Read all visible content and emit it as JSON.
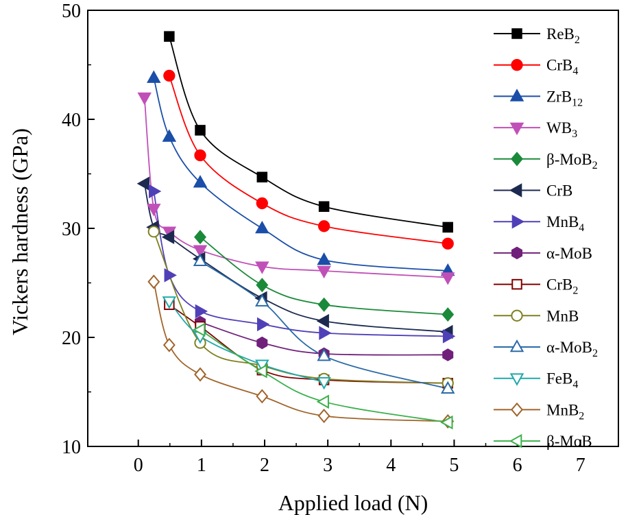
{
  "chart_data": {
    "type": "line",
    "title": "",
    "xlabel": "Applied load (N)",
    "ylabel": "Vickers hardness (GPa)",
    "xlim": [
      -0.8,
      7.6
    ],
    "ylim": [
      10,
      50
    ],
    "xticks": [
      0,
      1,
      2,
      3,
      4,
      5,
      6,
      7
    ],
    "yticks": [
      10,
      20,
      30,
      40,
      50
    ],
    "grid": false,
    "legend_position": "right",
    "series": [
      {
        "name": "ReB2",
        "name_base": "ReB",
        "name_sub": "2",
        "color": "#000000",
        "marker": "square",
        "filled": true,
        "x": [
          0.49,
          0.98,
          1.96,
          2.94,
          4.9
        ],
        "y": [
          47.6,
          39.0,
          34.7,
          32.0,
          30.1
        ]
      },
      {
        "name": "CrB4",
        "name_base": "CrB",
        "name_sub": "4",
        "color": "#ff0000",
        "marker": "circle",
        "filled": true,
        "x": [
          0.49,
          0.98,
          1.96,
          2.94,
          4.9
        ],
        "y": [
          44.0,
          36.7,
          32.3,
          30.2,
          28.6
        ]
      },
      {
        "name": "ZrB12",
        "name_base": "ZrB",
        "name_sub": "12",
        "color": "#1a4ea8",
        "marker": "triangle-up",
        "filled": true,
        "x": [
          0.245,
          0.49,
          0.98,
          1.96,
          2.94,
          4.9
        ],
        "y": [
          43.8,
          38.4,
          34.2,
          30.0,
          27.1,
          26.1
        ]
      },
      {
        "name": "WB3",
        "name_base": "WB",
        "name_sub": "3",
        "color": "#c050b8",
        "marker": "triangle-down",
        "filled": true,
        "x": [
          0.098,
          0.245,
          0.49,
          0.98,
          1.96,
          2.94,
          4.9
        ],
        "y": [
          42.0,
          31.8,
          29.7,
          28.0,
          26.5,
          26.1,
          25.5
        ]
      },
      {
        "name": "β-MoB2",
        "name_base": "β-MoB",
        "name_sub": "2",
        "color": "#1a8a3a",
        "marker": "diamond",
        "filled": true,
        "x": [
          0.98,
          1.96,
          2.94,
          4.9
        ],
        "y": [
          29.2,
          24.8,
          23.0,
          22.1
        ]
      },
      {
        "name": "CrB",
        "name_base": "CrB",
        "name_sub": "",
        "color": "#1c2a50",
        "marker": "triangle-left",
        "filled": true,
        "x": [
          0.098,
          0.245,
          0.49,
          0.98,
          1.96,
          2.94,
          4.9
        ],
        "y": [
          34.1,
          30.1,
          29.2,
          27.2,
          23.6,
          21.5,
          20.5
        ]
      },
      {
        "name": "MnB4",
        "name_base": "MnB",
        "name_sub": "4",
        "color": "#5040b8",
        "marker": "triangle-right",
        "filled": true,
        "x": [
          0.245,
          0.49,
          0.98,
          1.96,
          2.94,
          4.9
        ],
        "y": [
          33.4,
          25.7,
          22.4,
          21.2,
          20.4,
          20.1
        ]
      },
      {
        "name": "α-MoB",
        "name_base": "α-MoB",
        "name_sub": "",
        "color": "#70207a",
        "marker": "hexagon",
        "filled": true,
        "x": [
          0.98,
          1.96,
          2.94,
          4.9
        ],
        "y": [
          21.4,
          19.5,
          18.5,
          18.4
        ]
      },
      {
        "name": "CrB2",
        "name_base": "CrB",
        "name_sub": "2",
        "color": "#800000",
        "marker": "square",
        "filled": false,
        "x": [
          0.49,
          0.98,
          1.96,
          2.94,
          4.9
        ],
        "y": [
          23.0,
          21.0,
          17.0,
          16.1,
          15.8
        ]
      },
      {
        "name": "MnB",
        "name_base": "MnB",
        "name_sub": "",
        "color": "#808020",
        "marker": "circle",
        "filled": false,
        "x": [
          0.245,
          0.98,
          1.96,
          2.94,
          4.9
        ],
        "y": [
          29.7,
          19.5,
          17.4,
          16.2,
          15.8
        ]
      },
      {
        "name": "α-MoB2",
        "name_base": "α-MoB",
        "name_sub": "2",
        "color": "#2a6aa8",
        "marker": "triangle-up",
        "filled": false,
        "x": [
          0.98,
          1.96,
          2.94,
          4.9
        ],
        "y": [
          27.0,
          23.3,
          18.3,
          15.3
        ]
      },
      {
        "name": "FeB4",
        "name_base": "FeB",
        "name_sub": "4",
        "color": "#20a8a8",
        "marker": "triangle-down",
        "filled": false,
        "x": [
          0.49,
          0.98,
          1.96,
          2.94
        ],
        "y": [
          23.3,
          20.1,
          17.5,
          15.9
        ]
      },
      {
        "name": "MnB2",
        "name_base": "MnB",
        "name_sub": "2",
        "color": "#a0642a",
        "marker": "diamond",
        "filled": false,
        "x": [
          0.245,
          0.49,
          0.98,
          1.96,
          2.94,
          4.9
        ],
        "y": [
          25.1,
          19.3,
          16.6,
          14.6,
          12.8,
          12.3
        ]
      },
      {
        "name": "β-MoB",
        "name_base": "β-MoB",
        "name_sub": "",
        "color": "#3ab04a",
        "marker": "triangle-left",
        "filled": false,
        "x": [
          0.98,
          1.96,
          2.94,
          4.9
        ],
        "y": [
          20.7,
          16.9,
          14.1,
          12.2
        ]
      }
    ]
  }
}
